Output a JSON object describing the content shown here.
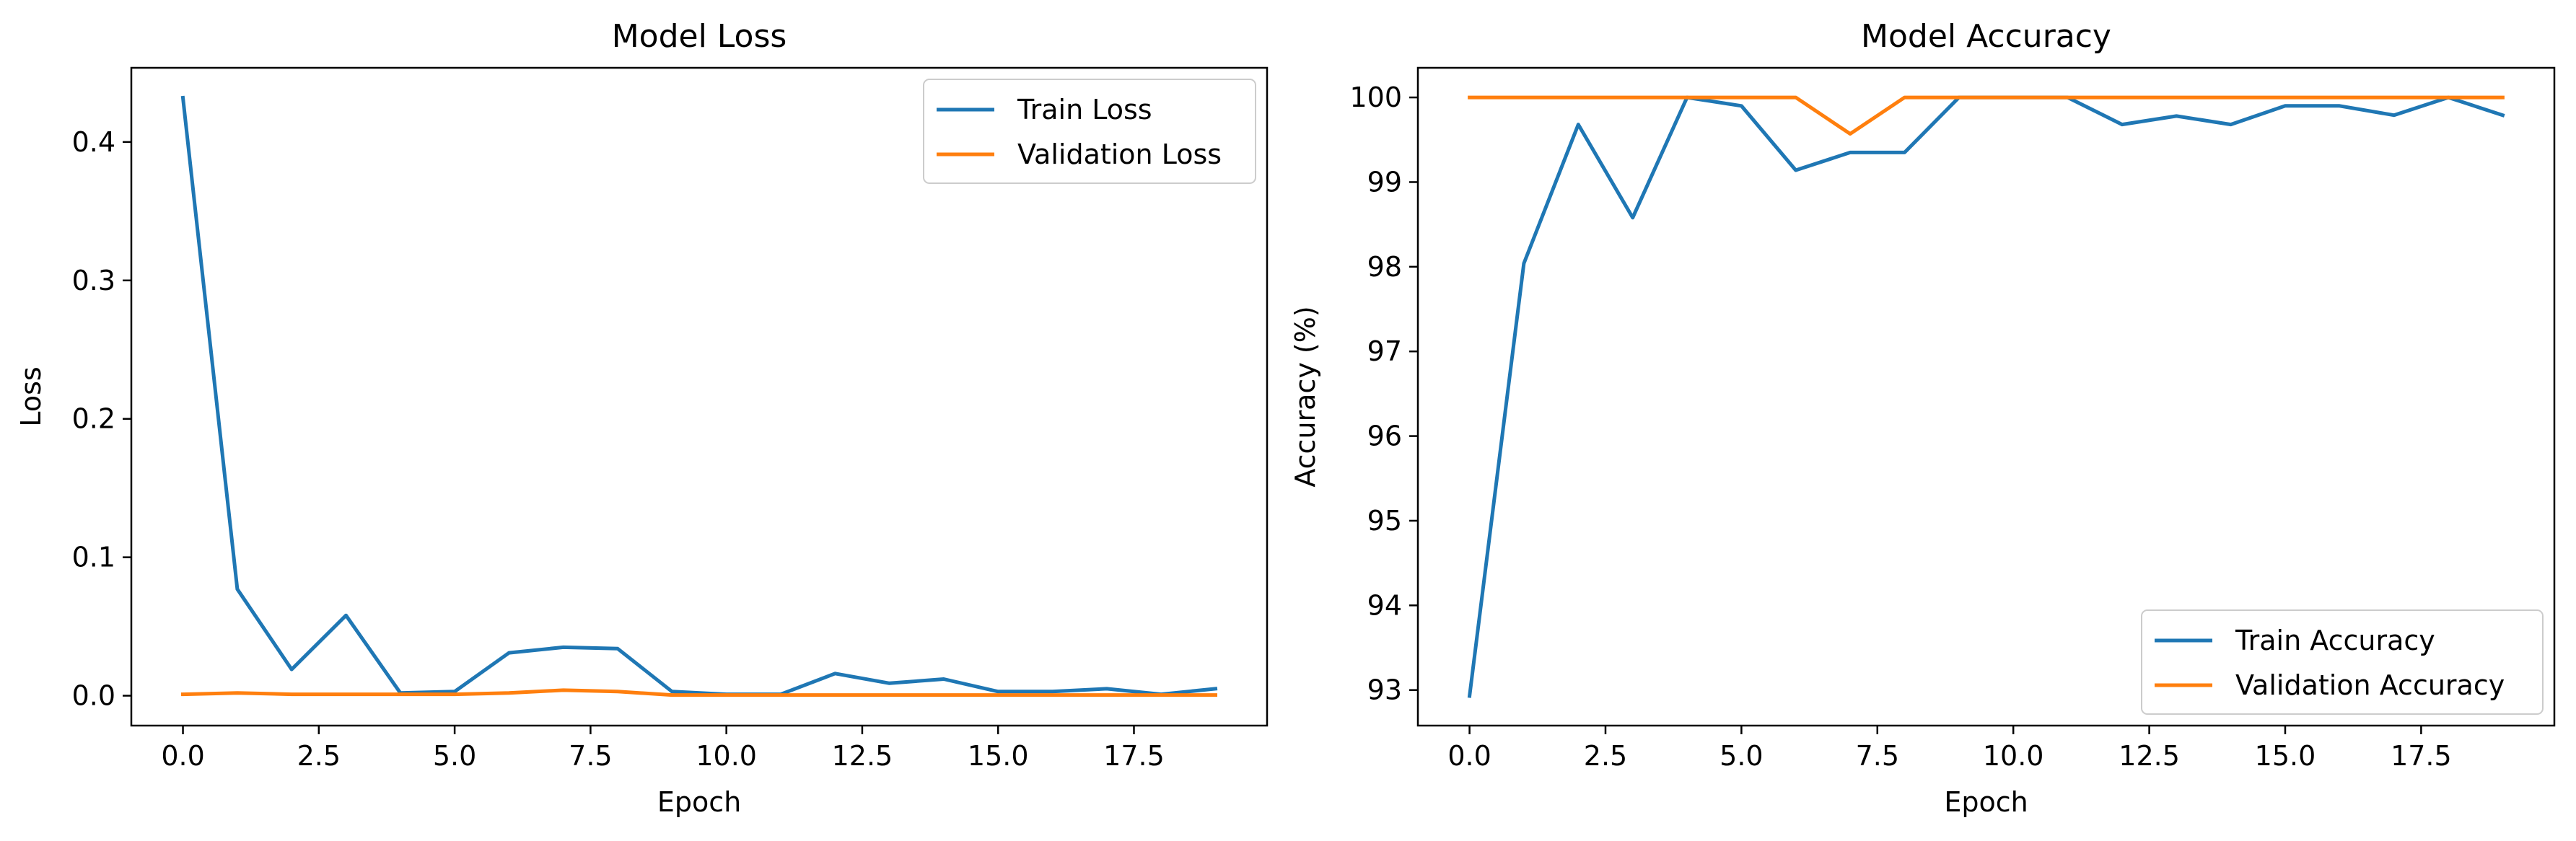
{
  "chart_data": [
    {
      "type": "line",
      "title": "Model Loss",
      "xlabel": "Epoch",
      "ylabel": "Loss",
      "xlim": [
        -0.95,
        19.95
      ],
      "ylim": [
        -0.0216,
        0.4536
      ],
      "xticks": [
        0,
        2.5,
        5,
        7.5,
        10,
        12.5,
        15,
        17.5
      ],
      "xtick_labels": [
        "0.0",
        "2.5",
        "5.0",
        "7.5",
        "10.0",
        "12.5",
        "15.0",
        "17.5"
      ],
      "yticks": [
        0,
        0.1,
        0.2,
        0.3,
        0.4
      ],
      "ytick_labels": [
        "0.0",
        "0.1",
        "0.2",
        "0.3",
        "0.4"
      ],
      "grid": false,
      "legend_position": "upper right",
      "x": [
        0,
        1,
        2,
        3,
        4,
        5,
        6,
        7,
        8,
        9,
        10,
        11,
        12,
        13,
        14,
        15,
        16,
        17,
        18,
        19
      ],
      "series": [
        {
          "name": "Train Loss",
          "color": "#1f77b4",
          "values": [
            0.432,
            0.077,
            0.019,
            0.058,
            0.002,
            0.003,
            0.031,
            0.035,
            0.034,
            0.003,
            0.001,
            0.001,
            0.016,
            0.009,
            0.012,
            0.003,
            0.003,
            0.005,
            0.001,
            0.005
          ]
        },
        {
          "name": "Validation Loss",
          "color": "#ff7f0e",
          "values": [
            0.001,
            0.002,
            0.001,
            0.001,
            0.001,
            0.001,
            0.002,
            0.004,
            0.003,
            0.0005,
            0.0005,
            0.0005,
            0.0005,
            0.0005,
            0.0005,
            0.0005,
            0.0005,
            0.0005,
            0.0005,
            0.0005
          ]
        }
      ]
    },
    {
      "type": "line",
      "title": "Model Accuracy",
      "xlabel": "Epoch",
      "ylabel": "Accuracy (%)",
      "xlim": [
        -0.95,
        19.95
      ],
      "ylim": [
        92.58,
        100.35
      ],
      "xticks": [
        0,
        2.5,
        5,
        7.5,
        10,
        12.5,
        15,
        17.5
      ],
      "xtick_labels": [
        "0.0",
        "2.5",
        "5.0",
        "7.5",
        "10.0",
        "12.5",
        "15.0",
        "17.5"
      ],
      "yticks": [
        93,
        94,
        95,
        96,
        97,
        98,
        99,
        100
      ],
      "ytick_labels": [
        "93",
        "94",
        "95",
        "96",
        "97",
        "98",
        "99",
        "100"
      ],
      "grid": false,
      "legend_position": "lower right",
      "x": [
        0,
        1,
        2,
        3,
        4,
        5,
        6,
        7,
        8,
        9,
        10,
        11,
        12,
        13,
        14,
        15,
        16,
        17,
        18,
        19
      ],
      "series": [
        {
          "name": "Train Accuracy",
          "color": "#1f77b4",
          "values": [
            92.93,
            98.04,
            99.68,
            98.58,
            100.0,
            99.9,
            99.14,
            99.35,
            99.35,
            100.0,
            100.0,
            100.0,
            99.68,
            99.78,
            99.68,
            99.9,
            99.9,
            99.79,
            100.0,
            99.79
          ]
        },
        {
          "name": "Validation Accuracy",
          "color": "#ff7f0e",
          "values": [
            100,
            100,
            100,
            100,
            100,
            100,
            100,
            99.57,
            100,
            100,
            100,
            100,
            100,
            100,
            100,
            100,
            100,
            100,
            100,
            100
          ]
        }
      ]
    }
  ]
}
